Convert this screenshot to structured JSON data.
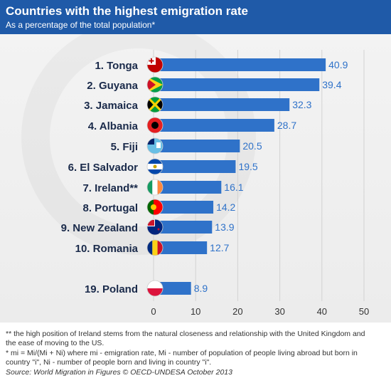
{
  "header": {
    "title": "Countries with the highest emigration rate",
    "subtitle": "As a percentage of the total population*"
  },
  "colors": {
    "header_bg": "#1f5aa8",
    "bar": "#2f72c9",
    "value_text": "#2f72c9",
    "label_text": "#1a2a4a"
  },
  "chart_data": {
    "type": "bar",
    "orientation": "horizontal",
    "title": "Countries with the highest emigration rate",
    "subtitle": "As a percentage of the total population*",
    "categories": [
      "1. Tonga",
      "2. Guyana",
      "3. Jamaica",
      "4. Albania",
      "5. Fiji",
      "6. El Salvador",
      "7. Ireland**",
      "8. Portugal",
      "9. New Zealand",
      "10. Romania",
      "19. Poland"
    ],
    "flags": [
      "tonga-flag-icon",
      "guyana-flag-icon",
      "jamaica-flag-icon",
      "albania-flag-icon",
      "fiji-flag-icon",
      "el-salvador-flag-icon",
      "ireland-flag-icon",
      "portugal-flag-icon",
      "new-zealand-flag-icon",
      "romania-flag-icon",
      "poland-flag-icon"
    ],
    "values": [
      40.9,
      39.4,
      32.3,
      28.7,
      20.5,
      19.5,
      16.1,
      14.2,
      13.9,
      12.7,
      8.9
    ],
    "value_labels": [
      "40.9",
      "39.4",
      "32.3",
      "28.7",
      "20.5",
      "19.5",
      "16.1",
      "14.2",
      "13.9",
      "12.7",
      "8.9"
    ],
    "xlim": [
      0,
      50
    ],
    "xticks": [
      0,
      10,
      20,
      30,
      40,
      50
    ],
    "xlabel": "",
    "ylabel": "",
    "grid": true
  },
  "footer": {
    "note_ireland": "** the high position of Ireland stems from the natural closeness and relationship with the United Kingdom and the ease of moving to the US.",
    "note_formula": "* mi = Mi/(Mi + Ni) where mi - emigration rate, Mi - number of population of people living abroad but born in country \"i\", Ni - number of people born and living in country \"i\".",
    "source": "Source: World Migration in Figures © OECD-UNDESA October 2013"
  }
}
